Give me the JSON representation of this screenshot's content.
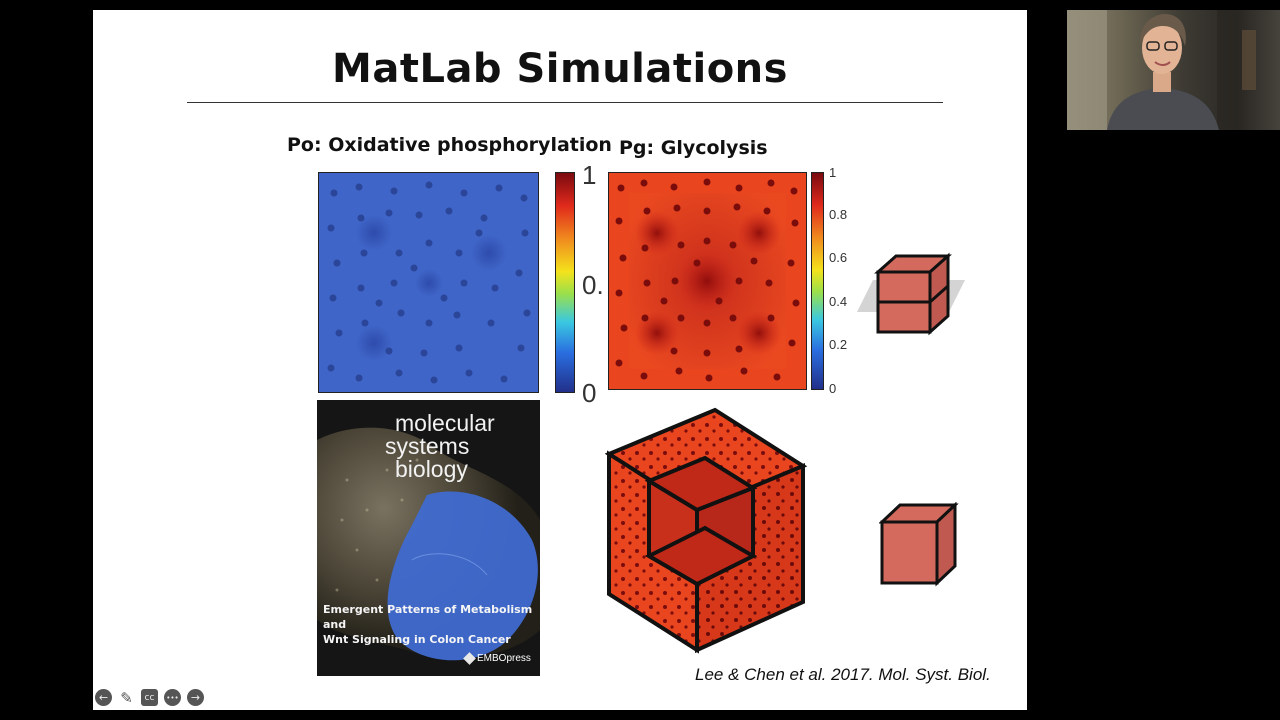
{
  "slide": {
    "title": "MatLab Simulations",
    "label_po": "Po: Oxidative phosphorylation",
    "label_pg": "Pg: Glycolysis",
    "po_colorbar_ticks": [
      "1",
      "0.",
      "0"
    ],
    "pg_colorbar_ticks": [
      "1",
      "0.8",
      "0.6",
      "0.4",
      "0.2",
      "0"
    ],
    "citation": "Lee & Chen et al. 2017. Mol. Syst. Biol."
  },
  "journal_cover": {
    "title_line1": "molecular",
    "title_line2": "systems",
    "title_line3": "biology",
    "caption_line1": "Emergent Patterns of Metabolism and",
    "caption_line2": "Wnt Signaling in Colon Cancer",
    "publisher": "EMBOpress"
  },
  "controls": {
    "prev_icon": "←",
    "pen_icon": "✎",
    "cc_icon": "cc",
    "more_icon": "•••",
    "next_icon": "→"
  },
  "colors": {
    "po_fill": "#3a5fc4",
    "pg_fill": "#e0401f",
    "cube_fill": "#d46a5e"
  }
}
